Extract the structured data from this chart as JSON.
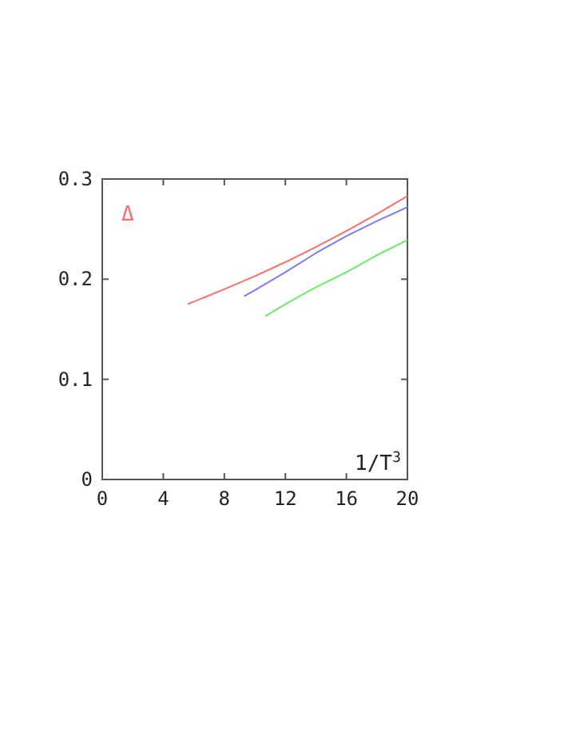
{
  "chart_data": {
    "type": "line",
    "xlabel": "1/T$^{3}$",
    "annotations": [
      "Δ"
    ],
    "xlim": [
      0,
      20
    ],
    "ylim": [
      0,
      0.3
    ],
    "xticks": [
      0,
      4,
      8,
      12,
      16,
      20
    ],
    "yticks": [
      {
        "value": 0,
        "label": "0"
      },
      {
        "value": 0.1,
        "label": "0.1"
      },
      {
        "value": 0.2,
        "label": "0.2"
      },
      {
        "value": 0.3,
        "label": "0.3"
      }
    ],
    "grid": false,
    "series": [
      {
        "color": "#ff6a6a",
        "x": [
          5.6,
          8,
          10,
          12,
          14,
          16,
          18,
          20
        ],
        "values": [
          0.175,
          0.19,
          0.203,
          0.217,
          0.232,
          0.248,
          0.265,
          0.283
        ]
      },
      {
        "color": "#7a7aff",
        "x": [
          9.3,
          10,
          12,
          14,
          16,
          18,
          20
        ],
        "values": [
          0.183,
          0.189,
          0.207,
          0.226,
          0.243,
          0.258,
          0.272
        ]
      },
      {
        "color": "#66ee66",
        "x": [
          10.7,
          12,
          14,
          16,
          18,
          20
        ],
        "values": [
          0.163,
          0.175,
          0.192,
          0.207,
          0.224,
          0.239
        ]
      }
    ]
  }
}
